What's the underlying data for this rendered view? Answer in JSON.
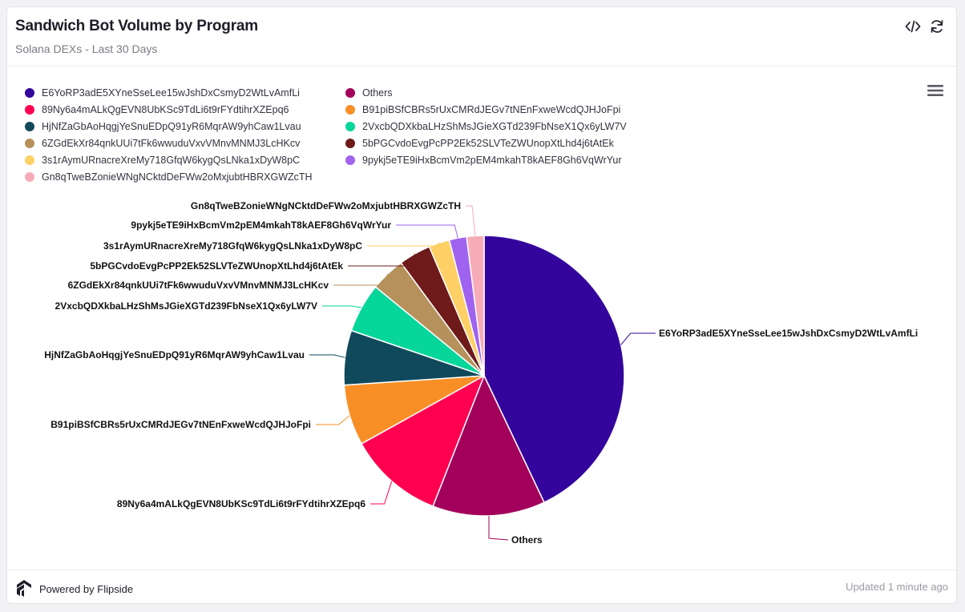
{
  "header": {
    "title": "Sandwich Bot Volume by Program",
    "subtitle": "Solana DEXs - Last 30 Days"
  },
  "icons": {
    "embed": "code-icon",
    "refresh": "refresh-icon",
    "menu": "hamburger-menu-icon",
    "brand": "flipside-logo-icon"
  },
  "footer": {
    "powered_by": "Powered by Flipside",
    "updated": "Updated 1 minute ago"
  },
  "watermark": "flipside",
  "chart_data": {
    "type": "pie",
    "title": "Sandwich Bot Volume by Program",
    "subtitle": "Solana DEXs - Last 30 Days",
    "legend_position": "top",
    "slices": [
      {
        "label": "E6YoRP3adE5XYneSseLee15wJshDxCsmyD2WtLvAmfLi",
        "value": 43.0,
        "color": "#34059c"
      },
      {
        "label": "Others",
        "value": 13.0,
        "color": "#a3005c"
      },
      {
        "label": "89Ny6a4mALkQgEVN8UbKSc9TdLi6t9rFYdtihrXZEpq6",
        "value": 11.0,
        "color": "#ff0051"
      },
      {
        "label": "B91piBSfCBRs5rUxCMRdJEGv7tNEnFxweWcdQJHJoFpi",
        "value": 7.0,
        "color": "#f88f26"
      },
      {
        "label": "HjNfZaGbAoHqgjYeSnuEDpQ91yR6MqrAW9yhCaw1Lvau",
        "value": 6.3,
        "color": "#10495b"
      },
      {
        "label": "2VxcbQDXkbaLHzShMsJGieXGTd239FbNseX1Qx6yLW7V",
        "value": 5.7,
        "color": "#07d69b"
      },
      {
        "label": "6ZGdEkXr84qnkUUi7tFk6wwuduVxvVMnvMNMJ3LcHKcv",
        "value": 4.0,
        "color": "#b6915b"
      },
      {
        "label": "5bPGCvdoEvgPcPP2Ek52SLVTeZWUnopXtLhd4j6tAtEk",
        "value": 3.7,
        "color": "#6e1a1a"
      },
      {
        "label": "3s1rAymURnacreXreMy718GfqW6kygQsLNka1xDyW8pC",
        "value": 2.4,
        "color": "#fed065"
      },
      {
        "label": "9pykj5eTE9iHxBcmVm2pEM4mkahT8kAEF8Gh6VqWrYur",
        "value": 2.0,
        "color": "#a063ef"
      },
      {
        "label": "Gn8qTweBZonieWNgNCktdDeFWw2oMxjubtHBRXGWZcTH",
        "value": 2.0,
        "color": "#f6acb7"
      }
    ],
    "legend_order": [
      "E6YoRP3adE5XYneSseLee15wJshDxCsmyD2WtLvAmfLi",
      "Others",
      "89Ny6a4mALkQgEVN8UbKSc9TdLi6t9rFYdtihrXZEpq6",
      "B91piBSfCBRs5rUxCMRdJEGv7tNEnFxweWcdQJHJoFpi",
      "HjNfZaGbAoHqgjYeSnuEDpQ91yR6MqrAW9yhCaw1Lvau",
      "2VxcbQDXkbaLHzShMsJGieXGTd239FbNseX1Qx6yLW7V",
      "6ZGdEkXr84qnkUUi7tFk6wwuduVxvVMnvMNMJ3LcHKcv",
      "5bPGCvdoEvgPcPP2Ek52SLVTeZWUnopXtLhd4j6tAtEk",
      "3s1rAymURnacreXreMy718GfqW6kygQsLNka1xDyW8pC",
      "9pykj5eTE9iHxBcmVm2pEM4mkahT8kAEF8Gh6VqWrYur",
      "Gn8qTweBZonieWNgNCktdDeFWw2oMxjubtHBRXGWZcTH"
    ]
  }
}
